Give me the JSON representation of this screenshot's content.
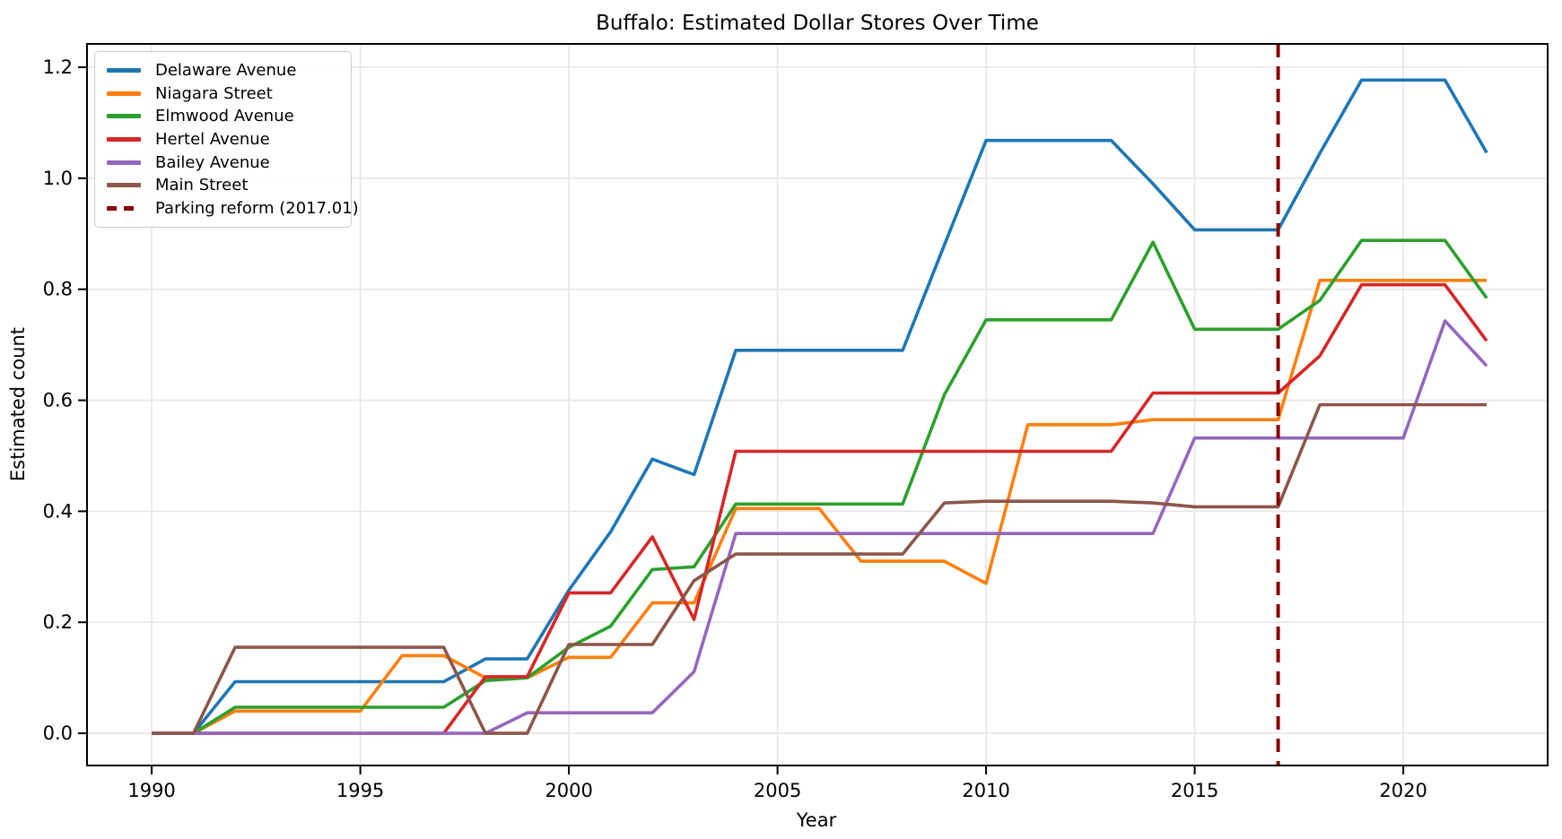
{
  "page": {
    "background": "#ffffff"
  },
  "chart_data": {
    "type": "line",
    "title": "Buffalo: Estimated Dollar Stores Over Time",
    "xlabel": "Year",
    "ylabel": "Estimated count",
    "grid": true,
    "legend_position": "upper-left",
    "xlim": [
      1988.45,
      2023.46
    ],
    "ylim": [
      -0.058,
      1.242
    ],
    "xticks": [
      1990,
      1995,
      2000,
      2005,
      2010,
      2015,
      2020
    ],
    "yticks": [
      0.0,
      0.2,
      0.4,
      0.6,
      0.8,
      1.0,
      1.2
    ],
    "x": [
      1990,
      1991,
      1992,
      1993,
      1994,
      1995,
      1996,
      1997,
      1998,
      1999,
      2000,
      2001,
      2002,
      2003,
      2004,
      2005,
      2006,
      2007,
      2008,
      2009,
      2010,
      2011,
      2012,
      2013,
      2014,
      2015,
      2016,
      2017,
      2018,
      2019,
      2020,
      2021,
      2022
    ],
    "series": [
      {
        "name": "Delaware Avenue",
        "color": "#1f77b4",
        "values": [
          0,
          0,
          0.093,
          0.093,
          0.093,
          0.093,
          0.093,
          0.093,
          0.134,
          0.134,
          0.258,
          0.363,
          0.494,
          0.466,
          0.69,
          0.69,
          0.69,
          0.69,
          0.69,
          0.88,
          1.068,
          1.068,
          1.068,
          1.068,
          0.99,
          0.907,
          0.907,
          0.907,
          1.045,
          1.177,
          1.177,
          1.177,
          1.046
        ]
      },
      {
        "name": "Niagara Street",
        "color": "#ff7f0e",
        "values": [
          0,
          0,
          0.04,
          0.04,
          0.04,
          0.04,
          0.14,
          0.14,
          0.1,
          0.1,
          0.137,
          0.137,
          0.235,
          0.235,
          0.405,
          0.405,
          0.405,
          0.31,
          0.31,
          0.31,
          0.27,
          0.556,
          0.556,
          0.556,
          0.565,
          0.565,
          0.565,
          0.565,
          0.816,
          0.816,
          0.816,
          0.816,
          0.816
        ]
      },
      {
        "name": "Elmwood Avenue",
        "color": "#2ca02c",
        "values": [
          0,
          0,
          0.047,
          0.047,
          0.047,
          0.047,
          0.047,
          0.047,
          0.095,
          0.1,
          0.155,
          0.193,
          0.295,
          0.3,
          0.413,
          0.413,
          0.413,
          0.413,
          0.413,
          0.61,
          0.745,
          0.745,
          0.745,
          0.745,
          0.885,
          0.728,
          0.728,
          0.728,
          0.78,
          0.888,
          0.888,
          0.888,
          0.784
        ]
      },
      {
        "name": "Hertel Avenue",
        "color": "#d62728",
        "values": [
          0,
          0,
          0,
          0,
          0,
          0,
          0,
          0,
          0.102,
          0.102,
          0.253,
          0.253,
          0.354,
          0.205,
          0.508,
          0.508,
          0.508,
          0.508,
          0.508,
          0.508,
          0.508,
          0.508,
          0.508,
          0.508,
          0.613,
          0.613,
          0.613,
          0.613,
          0.68,
          0.808,
          0.808,
          0.808,
          0.707
        ]
      },
      {
        "name": "Bailey Avenue",
        "color": "#9467bd",
        "values": [
          0,
          0,
          0,
          0,
          0,
          0,
          0,
          0,
          0,
          0.037,
          0.037,
          0.037,
          0.037,
          0.111,
          0.36,
          0.36,
          0.36,
          0.36,
          0.36,
          0.36,
          0.36,
          0.36,
          0.36,
          0.36,
          0.36,
          0.532,
          0.532,
          0.532,
          0.532,
          0.532,
          0.532,
          0.743,
          0.662
        ]
      },
      {
        "name": "Main Street",
        "color": "#8c564b",
        "values": [
          0,
          0,
          0.155,
          0.155,
          0.155,
          0.155,
          0.155,
          0.155,
          0,
          0,
          0.16,
          0.16,
          0.16,
          0.275,
          0.323,
          0.323,
          0.323,
          0.323,
          0.323,
          0.415,
          0.418,
          0.418,
          0.418,
          0.418,
          0.415,
          0.408,
          0.408,
          0.408,
          0.592,
          0.592,
          0.592,
          0.592,
          0.592
        ]
      }
    ],
    "vline": {
      "x": 2017.0,
      "label": "Parking reform (2017.01)",
      "color": "#8b0000",
      "style": "dashed"
    }
  }
}
